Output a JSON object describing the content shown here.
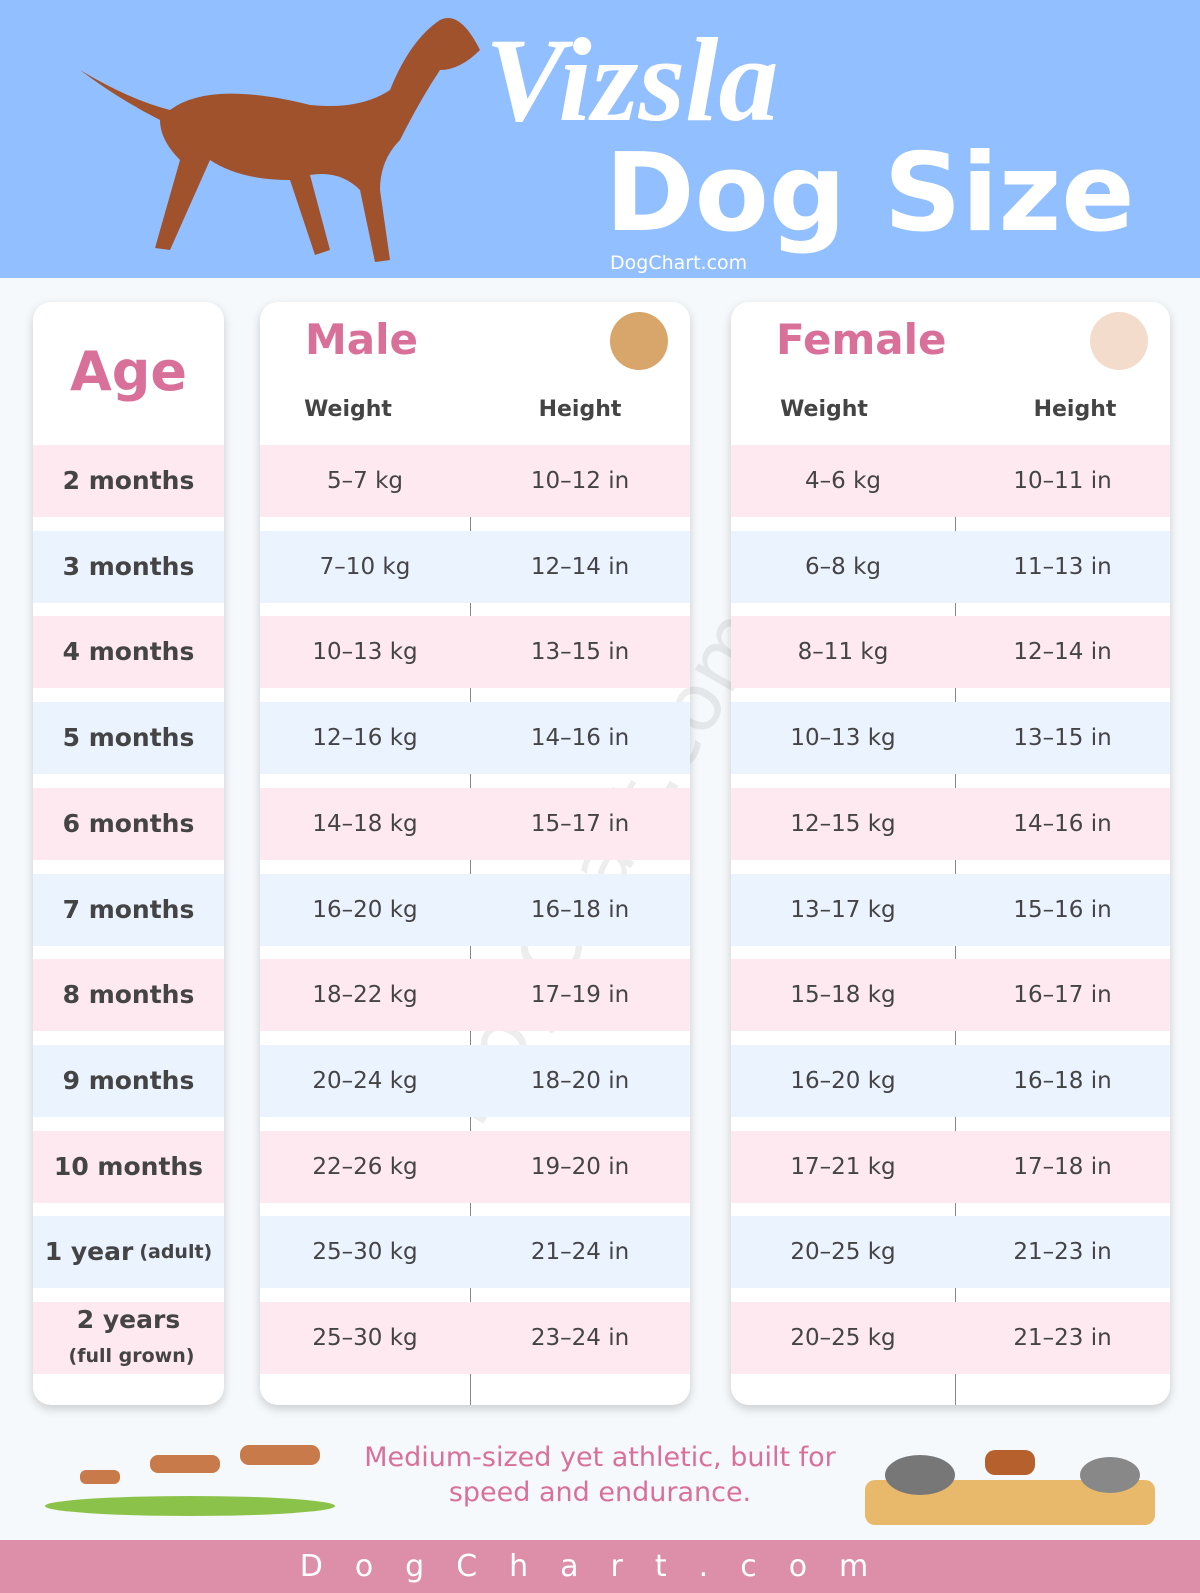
{
  "header": {
    "title": "Vizsla",
    "subtitle": "Dog Size",
    "site": "DogChart.com"
  },
  "table": {
    "age_header": "Age",
    "groups": [
      {
        "name": "Male",
        "columns": [
          "Weight",
          "Height"
        ]
      },
      {
        "name": "Female",
        "columns": [
          "Weight",
          "Height"
        ]
      }
    ],
    "rows": [
      {
        "age": "2 months",
        "values": [
          "5–7 kg",
          "10–12 in",
          "4–6 kg",
          "10–11 in"
        ]
      },
      {
        "age": "3 months",
        "values": [
          "7–10 kg",
          "12–14 in",
          "6–8 kg",
          "11–13 in"
        ]
      },
      {
        "age": "4 months",
        "values": [
          "10–13 kg",
          "13–15 in",
          "8–11 kg",
          "12–14 in"
        ]
      },
      {
        "age": "5 months",
        "values": [
          "12–16 kg",
          "14–16 in",
          "10–13 kg",
          "13–15 in"
        ]
      },
      {
        "age": "6 months",
        "values": [
          "14–18 kg",
          "15–17 in",
          "12–15 kg",
          "14–16 in"
        ]
      },
      {
        "age": "7 months",
        "values": [
          "16–20 kg",
          "16–18 in",
          "13–17 kg",
          "15–16 in"
        ]
      },
      {
        "age": "8 months",
        "values": [
          "18–22 kg",
          "17–19 in",
          "15–18 kg",
          "16–17 in"
        ]
      },
      {
        "age": "9 months",
        "values": [
          "20–24 kg",
          "18–20 in",
          "16–20 kg",
          "16–18 in"
        ]
      },
      {
        "age": "10 months",
        "values": [
          "22–26 kg",
          "19–20 in",
          "17–21 kg",
          "17–18 in"
        ]
      },
      {
        "age": "1 year",
        "note": "(adult)",
        "values": [
          "25–30 kg",
          "21–24 in",
          "20–25 kg",
          "21–23 in"
        ]
      },
      {
        "age": "2 years",
        "note": "(full grown)",
        "values": [
          "25–30 kg",
          "23–24 in",
          "20–25 kg",
          "21–23 in"
        ]
      }
    ]
  },
  "watermark": "DogChart.com",
  "tagline": "Medium-sized yet athletic, built for speed and endurance.",
  "footer": "DogChart.com"
}
